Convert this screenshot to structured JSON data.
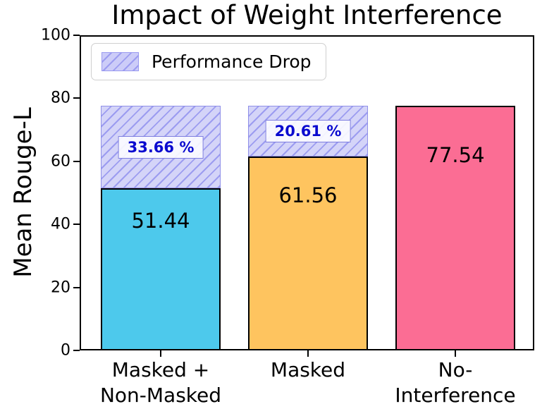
{
  "chart_data": {
    "type": "bar",
    "title": "Impact of Weight Interference",
    "ylabel": "Mean Rouge-L",
    "xlabel": "",
    "categories": [
      "Masked +\nNon-Masked",
      "Masked",
      "No-Interference"
    ],
    "values": [
      51.44,
      61.56,
      77.54
    ],
    "values_text": [
      "51.44",
      "61.56",
      "77.54"
    ],
    "bar_colors": [
      "#4DC9EC",
      "#FEC45F",
      "#FB6D94"
    ],
    "drops": [
      {
        "bar_index": 0,
        "label": "33.66 %",
        "top_value": 77.54
      },
      {
        "bar_index": 1,
        "label": "20.61 %",
        "top_value": 77.54
      }
    ],
    "legend_label": "Performance Drop",
    "legend_position": "upper left",
    "ylim": [
      0,
      100
    ],
    "yticks": [
      "0",
      "20",
      "40",
      "60",
      "80",
      "100"
    ],
    "grid": "off"
  },
  "colors": {
    "drop_fill": "#D4D4F8",
    "drop_hatch_line": "#9C9CF0",
    "drop_edge": "#8F8FE8",
    "pct_text": "#0A0ACF",
    "bar_edge": "#000000",
    "background": "#FFFFFF"
  }
}
